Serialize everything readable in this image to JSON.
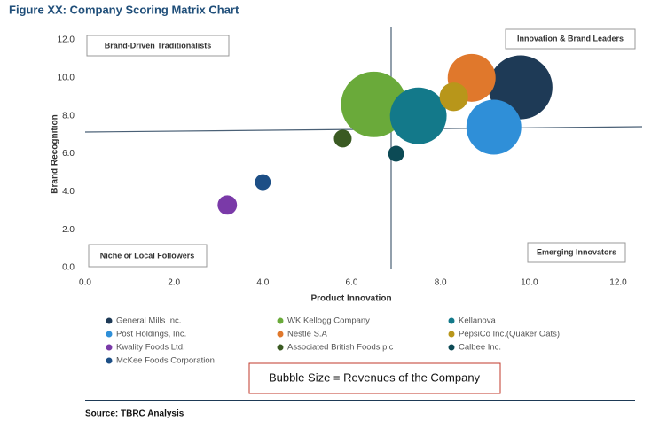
{
  "chart_data": {
    "type": "bubble",
    "title": "Figure XX: Company Scoring Matrix Chart",
    "x_label": "Product Innovation",
    "y_label": "Brand Recognition",
    "xlim": [
      0,
      12
    ],
    "ylim": [
      0,
      12
    ],
    "xticks": [
      {
        "value": 0,
        "label": "0.0"
      },
      {
        "value": 2,
        "label": "2.0"
      },
      {
        "value": 4,
        "label": "4.0"
      },
      {
        "value": 6,
        "label": "6.0"
      },
      {
        "value": 8,
        "label": "8.0"
      },
      {
        "value": 10,
        "label": "10.0"
      },
      {
        "value": 12,
        "label": "12.0"
      }
    ],
    "yticks": [
      {
        "value": 0,
        "label": "0.0"
      },
      {
        "value": 2,
        "label": "2.0"
      },
      {
        "value": 4,
        "label": "4.0"
      },
      {
        "value": 6,
        "label": "6.0"
      },
      {
        "value": 8,
        "label": "8.0"
      },
      {
        "value": 10,
        "label": "10.0"
      },
      {
        "value": 12,
        "label": "12.0"
      }
    ],
    "quadrant_labels": [
      "Brand-Driven Traditionalists",
      "Innovation & Brand Leaders",
      "Niche or Local Followers",
      "Emerging Innovators"
    ],
    "series": [
      {
        "name": "General Mills Inc.",
        "color": "#1e3a56",
        "x": 9.8,
        "y": 9.5,
        "size": 130
      },
      {
        "name": "WK Kellogg Company",
        "color": "#6aaa3a",
        "x": 6.5,
        "y": 8.6,
        "size": 137
      },
      {
        "name": "Kellanova",
        "color": "#13798a",
        "x": 7.5,
        "y": 8.0,
        "size": 102
      },
      {
        "name": "Post Holdings, Inc.",
        "color": "#2f8fd8",
        "x": 9.2,
        "y": 7.4,
        "size": 96
      },
      {
        "name": "Nestlé S.A",
        "color": "#e0782c",
        "x": 8.7,
        "y": 10.0,
        "size": 73
      },
      {
        "name": "PepsiCo Inc.(Quaker Oats)",
        "color": "#b8961a",
        "x": 8.3,
        "y": 9.0,
        "size": 26
      },
      {
        "name": "Kwality Foods Ltd.",
        "color": "#7a3aa8",
        "x": 3.2,
        "y": 3.3,
        "size": 12
      },
      {
        "name": "Associated British Foods plc",
        "color": "#3a5a22",
        "x": 5.8,
        "y": 6.8,
        "size": 10
      },
      {
        "name": "Calbee Inc.",
        "color": "#0c4a55",
        "x": 7.0,
        "y": 6.0,
        "size": 8
      },
      {
        "name": "McKee Foods Corporation",
        "color": "#1d4f86",
        "x": 4.0,
        "y": 4.5,
        "size": 8
      }
    ],
    "note": "Bubble Size = Revenues of the Company",
    "source": "Source: TBRC Analysis"
  }
}
